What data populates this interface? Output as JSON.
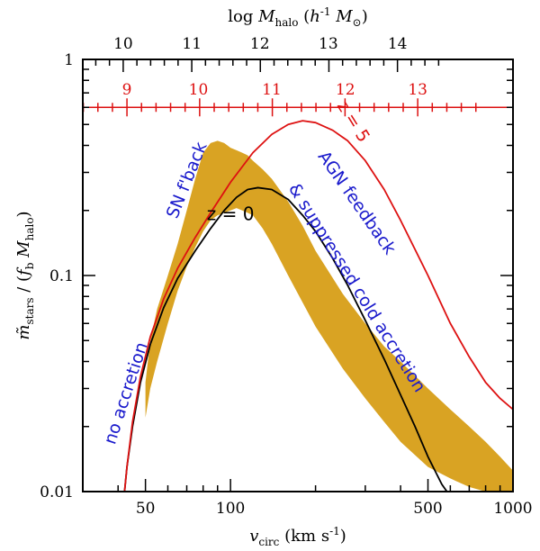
{
  "chart_data": {
    "type": "line",
    "title": "",
    "xlabel": "v_circ (km s⁻¹)",
    "ylabel": "m̃_stars / (f_b M_halo)",
    "top_xlabel": "log M_halo (h⁻¹ M⊙)",
    "xscale": "log",
    "yscale": "log",
    "xlim": [
      30,
      1000
    ],
    "ylim": [
      0.01,
      1
    ],
    "bottom_ticks": [
      {
        "value": 50,
        "label": "50"
      },
      {
        "value": 100,
        "label": "100"
      },
      {
        "value": 500,
        "label": "500"
      },
      {
        "value": 1000,
        "label": "1000"
      }
    ],
    "y_ticks": [
      {
        "value": 0.01,
        "label": "0.01"
      },
      {
        "value": 0.1,
        "label": "0.1"
      },
      {
        "value": 1,
        "label": "1"
      }
    ],
    "top_ticks_z0": [
      {
        "value": 10,
        "label": "10",
        "vcirc": 41.7
      },
      {
        "value": 11,
        "label": "11",
        "vcirc": 73.0
      },
      {
        "value": 12,
        "label": "12",
        "vcirc": 127.0
      },
      {
        "value": 13,
        "label": "13",
        "vcirc": 222.0
      },
      {
        "value": 14,
        "label": "14",
        "vcirc": 390.0
      }
    ],
    "red_axis_z5": {
      "y_value": 0.6,
      "ticks": [
        {
          "value": 9,
          "label": "9",
          "vcirc": 43.0
        },
        {
          "value": 10,
          "label": "10",
          "vcirc": 77.0
        },
        {
          "value": 11,
          "label": "11",
          "vcirc": 140.0
        },
        {
          "value": 12,
          "label": "12",
          "vcirc": 255.0
        },
        {
          "value": 13,
          "label": "13",
          "vcirc": 460.0
        }
      ]
    },
    "series": [
      {
        "name": "z = 0",
        "color": "#000000",
        "x": [
          42,
          43,
          45,
          48,
          52,
          58,
          65,
          75,
          85,
          95,
          105,
          115,
          125,
          140,
          160,
          180,
          200,
          230,
          260,
          300,
          350,
          400,
          450,
          500,
          560,
          600
        ],
        "y": [
          0.0095,
          0.013,
          0.02,
          0.032,
          0.048,
          0.071,
          0.097,
          0.13,
          0.165,
          0.2,
          0.23,
          0.25,
          0.255,
          0.25,
          0.225,
          0.19,
          0.16,
          0.12,
          0.09,
          0.062,
          0.041,
          0.028,
          0.02,
          0.0145,
          0.0108,
          0.0095
        ]
      },
      {
        "name": "z = 5",
        "color": "#dd1111",
        "x": [
          42,
          43,
          45,
          48,
          52,
          58,
          65,
          75,
          85,
          100,
          120,
          140,
          160,
          180,
          200,
          230,
          260,
          300,
          350,
          400,
          500,
          600,
          700,
          800,
          900,
          1000
        ],
        "y": [
          0.0095,
          0.013,
          0.021,
          0.034,
          0.052,
          0.078,
          0.108,
          0.15,
          0.195,
          0.27,
          0.37,
          0.45,
          0.5,
          0.52,
          0.51,
          0.47,
          0.42,
          0.34,
          0.25,
          0.18,
          0.1,
          0.06,
          0.042,
          0.032,
          0.027,
          0.024
        ]
      },
      {
        "name": "band",
        "color": "#d9a323",
        "x": [
          50,
          52,
          55,
          60,
          65,
          70,
          75,
          80,
          85,
          90,
          95,
          100,
          105,
          110,
          115,
          120,
          130,
          140,
          160,
          180,
          200,
          250,
          300,
          350,
          400,
          500,
          600,
          700,
          800,
          900,
          1000
        ],
        "y_upper": [
          0.032,
          0.05,
          0.07,
          0.1,
          0.14,
          0.2,
          0.28,
          0.37,
          0.41,
          0.42,
          0.41,
          0.39,
          0.38,
          0.37,
          0.36,
          0.34,
          0.31,
          0.28,
          0.22,
          0.17,
          0.13,
          0.082,
          0.06,
          0.047,
          0.04,
          0.03,
          0.024,
          0.02,
          0.017,
          0.0145,
          0.0125
        ],
        "y_lower": [
          0.022,
          0.03,
          0.04,
          0.06,
          0.085,
          0.11,
          0.135,
          0.16,
          0.18,
          0.19,
          0.195,
          0.2,
          0.205,
          0.2,
          0.195,
          0.19,
          0.165,
          0.14,
          0.1,
          0.075,
          0.058,
          0.037,
          0.027,
          0.021,
          0.017,
          0.013,
          0.0115,
          0.0105,
          0.01,
          0.01,
          0.01
        ]
      }
    ],
    "annotations": [
      {
        "text": "no accretion",
        "color": "#1a1acc",
        "x": 44.5,
        "y": 0.028,
        "angle": -72
      },
      {
        "text": "SN f'back",
        "color": "#1a1acc",
        "x": 73,
        "y": 0.27,
        "angle": -68
      },
      {
        "text": "AGN feedback",
        "color": "#1a1acc",
        "x": 270,
        "y": 0.21,
        "angle": 55
      },
      {
        "text": "& suppressed cold accretion",
        "color": "#1a1acc",
        "x": 270,
        "y": 0.085,
        "angle": 58
      },
      {
        "text": "z = 5",
        "color": "#dd1111",
        "x": 262,
        "y": 0.5,
        "angle": 58
      },
      {
        "text": "z = 0",
        "color": "#000000",
        "x": 100,
        "y": 0.18,
        "angle": 0
      }
    ]
  }
}
